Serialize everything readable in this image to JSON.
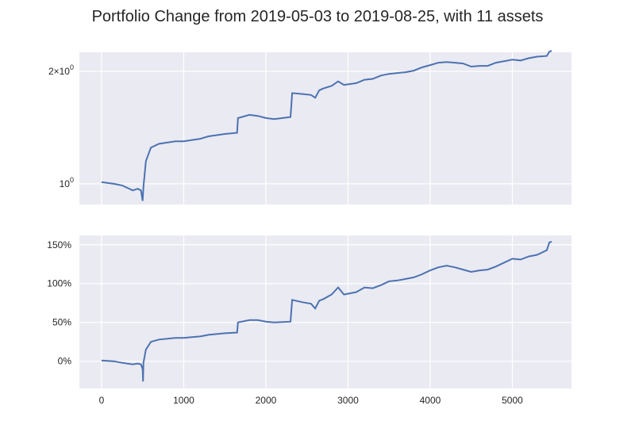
{
  "chart_data": {
    "type": "line",
    "title": "Portfolio Change from 2019-05-03 to 2019-08-25, with 11 assets",
    "line_color": "#4c72b0",
    "background_color": "#eaeaf2",
    "grid_color": "#ffffff",
    "xlabel": "",
    "xlim": [
      -270,
      5720
    ],
    "xticks": [
      "0",
      "1000",
      "2000",
      "3000",
      "4000",
      "5000"
    ],
    "panels": [
      {
        "name": "top",
        "ylabel": "",
        "yscale": "log",
        "ylim": [
          0.88,
          2.25
        ],
        "ytick_labels": [
          {
            "value": 2,
            "base": "2×10",
            "exp": "0"
          },
          {
            "value": 1,
            "base": "10",
            "exp": "0"
          }
        ],
        "series_points": [
          [
            0,
            1.01
          ],
          [
            150,
            1.0
          ],
          [
            250,
            0.99
          ],
          [
            380,
            0.96
          ],
          [
            440,
            0.97
          ],
          [
            480,
            0.96
          ],
          [
            500,
            0.9
          ],
          [
            510,
            0.98
          ],
          [
            540,
            1.15
          ],
          [
            600,
            1.25
          ],
          [
            700,
            1.28
          ],
          [
            900,
            1.3
          ],
          [
            1000,
            1.3
          ],
          [
            1100,
            1.31
          ],
          [
            1200,
            1.32
          ],
          [
            1300,
            1.34
          ],
          [
            1400,
            1.35
          ],
          [
            1500,
            1.36
          ],
          [
            1650,
            1.37
          ],
          [
            1660,
            1.5
          ],
          [
            1800,
            1.53
          ],
          [
            1900,
            1.52
          ],
          [
            2000,
            1.5
          ],
          [
            2100,
            1.49
          ],
          [
            2300,
            1.51
          ],
          [
            2320,
            1.75
          ],
          [
            2450,
            1.74
          ],
          [
            2550,
            1.73
          ],
          [
            2600,
            1.7
          ],
          [
            2650,
            1.78
          ],
          [
            2700,
            1.8
          ],
          [
            2800,
            1.83
          ],
          [
            2880,
            1.88
          ],
          [
            2950,
            1.84
          ],
          [
            3100,
            1.86
          ],
          [
            3200,
            1.9
          ],
          [
            3300,
            1.91
          ],
          [
            3400,
            1.95
          ],
          [
            3500,
            1.97
          ],
          [
            3600,
            1.98
          ],
          [
            3700,
            1.99
          ],
          [
            3800,
            2.01
          ],
          [
            3900,
            2.05
          ],
          [
            4000,
            2.08
          ],
          [
            4100,
            2.11
          ],
          [
            4200,
            2.12
          ],
          [
            4300,
            2.11
          ],
          [
            4400,
            2.1
          ],
          [
            4500,
            2.06
          ],
          [
            4600,
            2.07
          ],
          [
            4700,
            2.07
          ],
          [
            4800,
            2.11
          ],
          [
            5000,
            2.15
          ],
          [
            5100,
            2.14
          ],
          [
            5200,
            2.17
          ],
          [
            5300,
            2.19
          ],
          [
            5420,
            2.2
          ],
          [
            5450,
            2.26
          ],
          [
            5480,
            2.27
          ]
        ]
      },
      {
        "name": "bottom",
        "ylabel": "",
        "yscale": "linear",
        "ylim": [
          -35,
          162
        ],
        "ytick_labels": [
          "150%",
          "100%",
          "50%",
          "0%"
        ],
        "ytick_values": [
          150,
          100,
          50,
          0
        ],
        "series_points": [
          [
            0,
            1
          ],
          [
            150,
            0
          ],
          [
            250,
            -2
          ],
          [
            380,
            -4
          ],
          [
            440,
            -3
          ],
          [
            480,
            -4
          ],
          [
            500,
            -10
          ],
          [
            505,
            -26
          ],
          [
            510,
            -2
          ],
          [
            540,
            15
          ],
          [
            600,
            25
          ],
          [
            700,
            28
          ],
          [
            900,
            30
          ],
          [
            1000,
            30
          ],
          [
            1100,
            31
          ],
          [
            1200,
            32
          ],
          [
            1300,
            34
          ],
          [
            1400,
            35
          ],
          [
            1500,
            36
          ],
          [
            1650,
            37
          ],
          [
            1660,
            50
          ],
          [
            1800,
            53
          ],
          [
            1900,
            53
          ],
          [
            2000,
            51
          ],
          [
            2100,
            50
          ],
          [
            2300,
            51
          ],
          [
            2320,
            79
          ],
          [
            2450,
            76
          ],
          [
            2550,
            74
          ],
          [
            2600,
            68
          ],
          [
            2650,
            78
          ],
          [
            2700,
            80
          ],
          [
            2800,
            86
          ],
          [
            2880,
            95
          ],
          [
            2950,
            86
          ],
          [
            3100,
            89
          ],
          [
            3200,
            95
          ],
          [
            3300,
            94
          ],
          [
            3400,
            98
          ],
          [
            3500,
            103
          ],
          [
            3600,
            104
          ],
          [
            3700,
            106
          ],
          [
            3800,
            108
          ],
          [
            3900,
            112
          ],
          [
            4000,
            117
          ],
          [
            4100,
            121
          ],
          [
            4200,
            123
          ],
          [
            4300,
            121
          ],
          [
            4400,
            118
          ],
          [
            4500,
            115
          ],
          [
            4600,
            117
          ],
          [
            4700,
            118
          ],
          [
            4800,
            122
          ],
          [
            5000,
            132
          ],
          [
            5100,
            131
          ],
          [
            5200,
            135
          ],
          [
            5300,
            137
          ],
          [
            5420,
            143
          ],
          [
            5450,
            153
          ],
          [
            5480,
            154
          ]
        ]
      }
    ]
  }
}
